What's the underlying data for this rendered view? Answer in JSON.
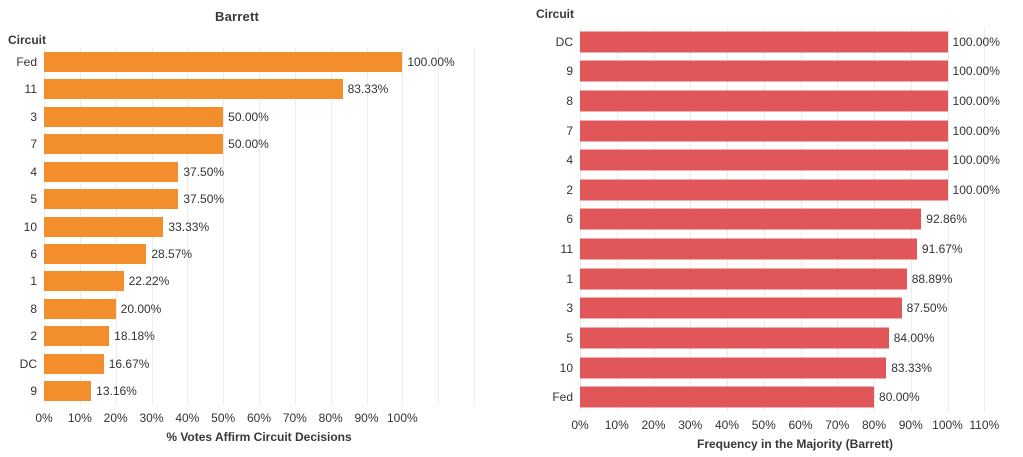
{
  "colors": {
    "bar_orange": "#f28e2c",
    "bar_red": "#e15759",
    "text": "#333333",
    "gridline": "#ececec",
    "background": "#ffffff"
  },
  "chart_data": [
    {
      "type": "bar",
      "orientation": "horizontal",
      "title": "Barrett",
      "field_label": "Circuit",
      "categories": [
        "Fed",
        "11",
        "3",
        "7",
        "4",
        "5",
        "10",
        "6",
        "1",
        "8",
        "2",
        "DC",
        "9"
      ],
      "values": [
        100.0,
        83.33,
        50.0,
        50.0,
        37.5,
        37.5,
        33.33,
        28.57,
        22.22,
        20.0,
        18.18,
        16.67,
        13.16
      ],
      "value_labels": [
        "100.00%",
        "83.33%",
        "50.00%",
        "50.00%",
        "37.50%",
        "37.50%",
        "33.33%",
        "28.57%",
        "22.22%",
        "20.00%",
        "18.18%",
        "16.67%",
        "13.16%"
      ],
      "xlabel": "% Votes Affirm Circuit Decisions",
      "xticks": [
        "0%",
        "10%",
        "20%",
        "30%",
        "40%",
        "50%",
        "60%",
        "70%",
        "80%",
        "90%",
        "100%"
      ],
      "tick_step": 10,
      "xlim": [
        0,
        120
      ],
      "grid": true,
      "legend": "none",
      "bar_color": "#f28e2c"
    },
    {
      "type": "bar",
      "orientation": "horizontal",
      "title": "",
      "field_label": "Circuit",
      "categories": [
        "DC",
        "9",
        "8",
        "7",
        "4",
        "2",
        "6",
        "11",
        "1",
        "3",
        "5",
        "10",
        "Fed"
      ],
      "values": [
        100.0,
        100.0,
        100.0,
        100.0,
        100.0,
        100.0,
        92.86,
        91.67,
        88.89,
        87.5,
        84.0,
        83.33,
        80.0
      ],
      "value_labels": [
        "100.00%",
        "100.00%",
        "100.00%",
        "100.00%",
        "100.00%",
        "100.00%",
        "92.86%",
        "91.67%",
        "88.89%",
        "87.50%",
        "84.00%",
        "83.33%",
        "80.00%"
      ],
      "xlabel": "Frequency in the Majority (Barrett)",
      "xticks": [
        "0%",
        "10%",
        "20%",
        "30%",
        "40%",
        "50%",
        "60%",
        "70%",
        "80%",
        "90%",
        "100%",
        "110%"
      ],
      "tick_step": 10,
      "xlim": [
        0,
        117
      ],
      "grid": true,
      "legend": "none",
      "bar_color": "#e15759"
    }
  ]
}
